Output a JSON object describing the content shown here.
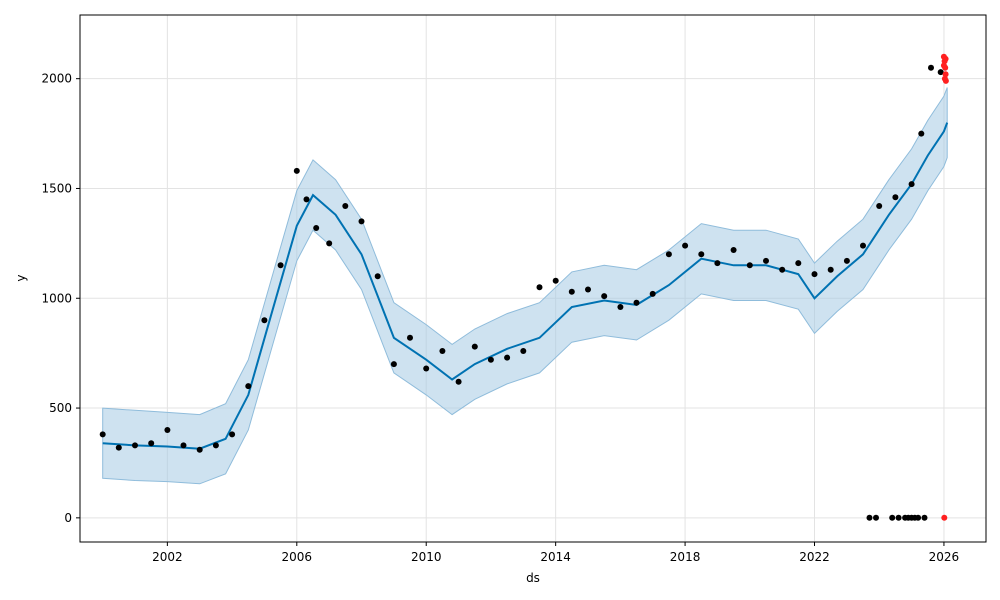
{
  "chart_data": {
    "type": "scatter",
    "title": "",
    "xlabel": "ds",
    "ylabel": "y",
    "xlim": [
      1999.3,
      2027.3
    ],
    "ylim": [
      -110,
      2290
    ],
    "x_ticks": [
      2002,
      2006,
      2010,
      2014,
      2018,
      2022,
      2026
    ],
    "x_tick_labels": [
      "2002",
      "2006",
      "2010",
      "2014",
      "2018",
      "2022",
      "2026"
    ],
    "y_ticks": [
      0,
      500,
      1000,
      1500,
      2000
    ],
    "y_tick_labels": [
      "0",
      "500",
      "1000",
      "1500",
      "2000"
    ],
    "grid": true,
    "legend": "none",
    "colors": {
      "observed": "#000000",
      "outliers": "#ff2020",
      "forecast_line": "#0072B2",
      "uncertainty_band": "#a6cbe3"
    },
    "forecast": {
      "x": [
        2000.0,
        2001.0,
        2002.0,
        2003.0,
        2003.8,
        2004.5,
        2005.2,
        2006.0,
        2006.5,
        2007.2,
        2008.0,
        2009.0,
        2010.0,
        2010.8,
        2011.5,
        2012.5,
        2013.5,
        2014.5,
        2015.5,
        2016.5,
        2017.5,
        2018.5,
        2019.5,
        2020.5,
        2021.5,
        2022.0,
        2022.7,
        2023.5,
        2024.3,
        2025.0,
        2025.5,
        2026.0,
        2026.1
      ],
      "y": [
        340,
        330,
        325,
        315,
        360,
        560,
        920,
        1330,
        1470,
        1380,
        1200,
        820,
        720,
        630,
        700,
        770,
        820,
        960,
        990,
        970,
        1060,
        1180,
        1150,
        1150,
        1110,
        1000,
        1100,
        1200,
        1380,
        1520,
        1650,
        1760,
        1800
      ],
      "upper": [
        500,
        490,
        480,
        470,
        520,
        720,
        1080,
        1490,
        1630,
        1540,
        1360,
        980,
        880,
        790,
        860,
        930,
        980,
        1120,
        1150,
        1130,
        1220,
        1340,
        1310,
        1310,
        1270,
        1160,
        1260,
        1360,
        1540,
        1680,
        1810,
        1920,
        1960
      ],
      "lower": [
        180,
        170,
        165,
        155,
        200,
        400,
        760,
        1170,
        1310,
        1220,
        1040,
        660,
        560,
        470,
        540,
        610,
        660,
        800,
        830,
        810,
        900,
        1020,
        990,
        990,
        950,
        840,
        940,
        1040,
        1220,
        1360,
        1490,
        1600,
        1640
      ]
    },
    "observed": {
      "x": [
        2000.0,
        2000.5,
        2001.0,
        2001.5,
        2002.0,
        2002.5,
        2003.0,
        2003.5,
        2004.0,
        2004.5,
        2005.0,
        2005.5,
        2006.0,
        2006.3,
        2006.6,
        2007.0,
        2007.5,
        2008.0,
        2008.5,
        2009.0,
        2009.5,
        2010.0,
        2010.5,
        2011.0,
        2011.5,
        2012.0,
        2012.5,
        2013.0,
        2013.5,
        2014.0,
        2014.5,
        2015.0,
        2015.5,
        2016.0,
        2016.5,
        2017.0,
        2017.5,
        2018.0,
        2018.5,
        2019.0,
        2019.5,
        2020.0,
        2020.5,
        2021.0,
        2021.5,
        2022.0,
        2022.5,
        2023.0,
        2023.5,
        2024.0,
        2024.5,
        2025.0,
        2025.3,
        2025.6,
        2025.9
      ],
      "y": [
        380,
        320,
        330,
        340,
        400,
        330,
        310,
        330,
        380,
        600,
        900,
        1150,
        1580,
        1450,
        1320,
        1250,
        1420,
        1350,
        1100,
        700,
        820,
        680,
        760,
        620,
        780,
        720,
        730,
        760,
        1050,
        1080,
        1030,
        1040,
        1010,
        960,
        980,
        1020,
        1200,
        1240,
        1200,
        1160,
        1220,
        1150,
        1170,
        1130,
        1160,
        1110,
        1130,
        1170,
        1240,
        1420,
        1460,
        1520,
        1750,
        2050,
        2030
      ]
    },
    "zero_points": {
      "x": [
        2023.7,
        2023.9,
        2024.4,
        2024.6,
        2024.8,
        2024.9,
        2025.0,
        2025.1,
        2025.2,
        2025.4
      ]
    },
    "outliers": {
      "x": [
        2026.0,
        2026.02,
        2026.04,
        2026.05,
        2026.06,
        2026.0,
        2026.03,
        2026.01,
        2026.05
      ],
      "y": [
        2100,
        2080,
        2050,
        2020,
        1990,
        2060,
        2000,
        0,
        2090
      ]
    }
  }
}
